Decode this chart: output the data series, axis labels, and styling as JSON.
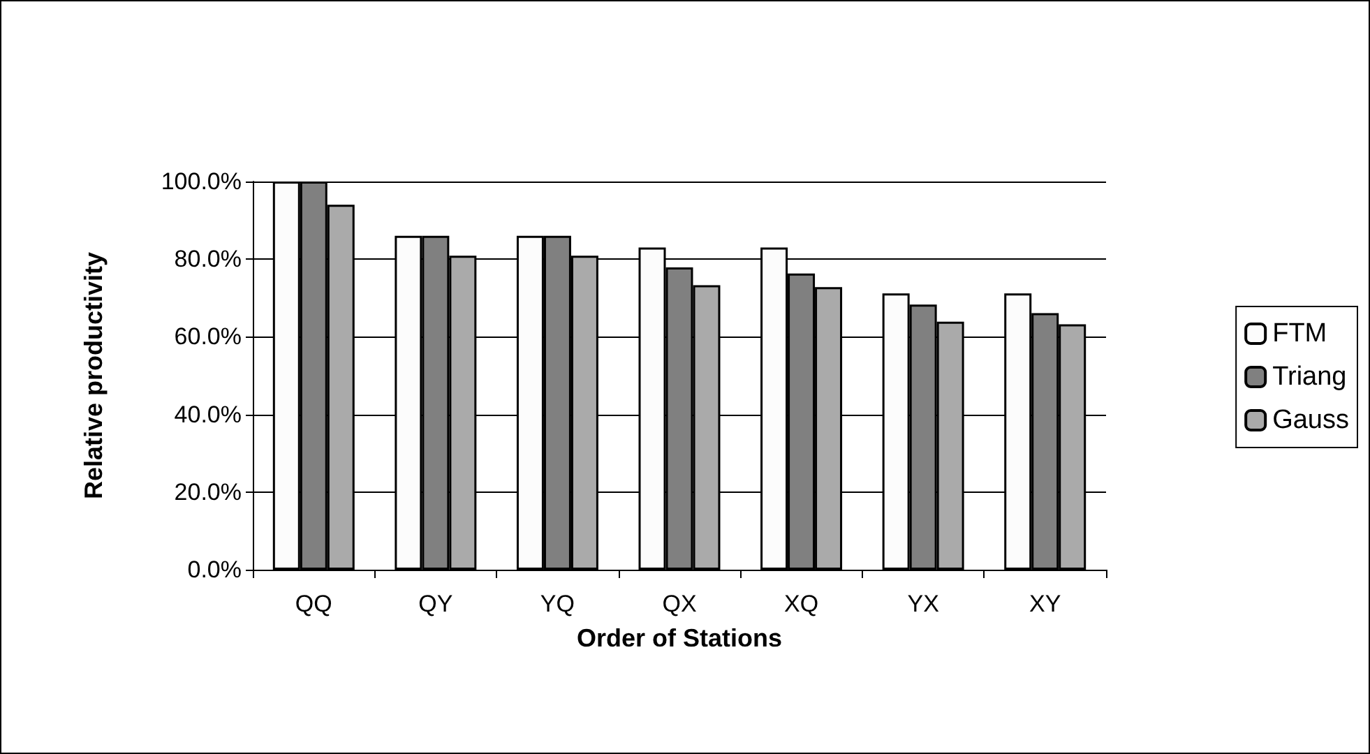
{
  "chart_data": {
    "type": "bar",
    "xlabel": "Order of Stations",
    "ylabel": "Relative productivity",
    "categories": [
      "QQ",
      "QY",
      "YQ",
      "QX",
      "XQ",
      "YX",
      "XY"
    ],
    "series": [
      {
        "name": "FTM",
        "color": "#fcfcfc",
        "values": [
          100,
          86,
          86,
          83,
          83,
          71.2,
          71.2
        ]
      },
      {
        "name": "Triang",
        "color": "#808080",
        "values": [
          100,
          86,
          86,
          77.9,
          76.3,
          68.3,
          66.1
        ]
      },
      {
        "name": "Gauss",
        "color": "#aaaaaa",
        "values": [
          94,
          80.9,
          80.9,
          73.3,
          72.8,
          63.9,
          63.2
        ]
      }
    ],
    "ylim": [
      0,
      100
    ],
    "yticks": [
      {
        "value": 0,
        "label": "0.0%"
      },
      {
        "value": 20,
        "label": "20.0%"
      },
      {
        "value": 40,
        "label": "40.0%"
      },
      {
        "value": 60,
        "label": "60.0%"
      },
      {
        "value": 80,
        "label": "80.0%"
      },
      {
        "value": 100,
        "label": "100.0%"
      }
    ],
    "grid": "y",
    "legend": "right"
  }
}
